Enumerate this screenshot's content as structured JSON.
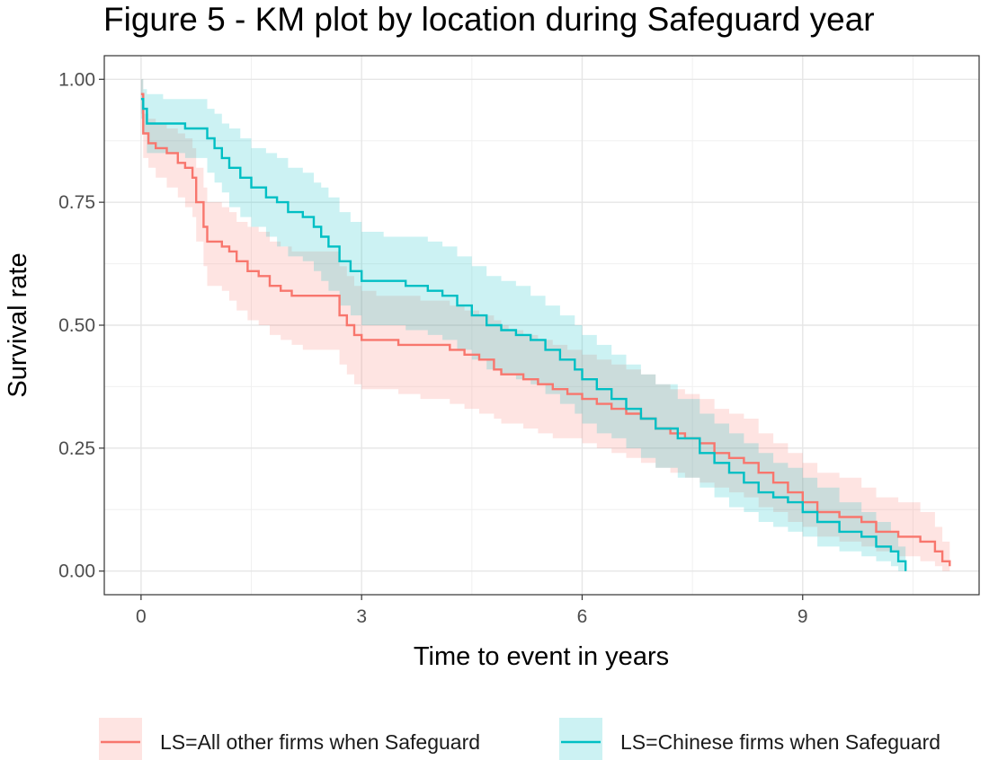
{
  "chart_data": {
    "type": "line",
    "title": "Figure 5 - KM plot by location during Safeguard year",
    "xlabel": "Time to event in years",
    "ylabel": "Survival rate",
    "xlim": [
      -0.5,
      11.4
    ],
    "ylim": [
      -0.048,
      1.048
    ],
    "x_ticks": [
      0,
      3,
      6,
      9
    ],
    "x_tick_labels": [
      "0",
      "3",
      "6",
      "9"
    ],
    "y_ticks": [
      0,
      0.25,
      0.5,
      0.75,
      1.0
    ],
    "y_tick_labels": [
      "0.00",
      "0.25",
      "0.50",
      "0.75",
      "1.00"
    ],
    "grid": true,
    "theme": "bw",
    "legend_position": "bottom",
    "series": [
      {
        "name": "LS=All other firms when Safeguard",
        "color": "#F8766D",
        "step": true,
        "x": [
          0,
          0.03,
          0.1,
          0.2,
          0.35,
          0.5,
          0.6,
          0.7,
          0.75,
          0.85,
          0.9,
          1.1,
          1.2,
          1.3,
          1.45,
          1.6,
          1.75,
          1.9,
          2.05,
          2.2,
          2.4,
          2.7,
          2.8,
          2.9,
          3.0,
          3.2,
          3.5,
          3.8,
          4.0,
          4.2,
          4.4,
          4.6,
          4.8,
          4.9,
          5.0,
          5.2,
          5.4,
          5.6,
          5.8,
          6.0,
          6.2,
          6.4,
          6.6,
          6.8,
          7.0,
          7.2,
          7.4,
          7.6,
          7.8,
          8.0,
          8.2,
          8.4,
          8.6,
          8.8,
          9.0,
          9.2,
          9.5,
          9.8,
          10.0,
          10.3,
          10.6,
          10.8,
          10.9,
          11.0
        ],
        "y": [
          0.97,
          0.89,
          0.87,
          0.86,
          0.85,
          0.83,
          0.82,
          0.8,
          0.75,
          0.7,
          0.67,
          0.66,
          0.65,
          0.63,
          0.61,
          0.6,
          0.58,
          0.57,
          0.56,
          0.56,
          0.56,
          0.52,
          0.5,
          0.48,
          0.47,
          0.47,
          0.46,
          0.46,
          0.46,
          0.45,
          0.44,
          0.43,
          0.41,
          0.4,
          0.4,
          0.39,
          0.38,
          0.37,
          0.36,
          0.35,
          0.34,
          0.33,
          0.32,
          0.31,
          0.29,
          0.28,
          0.27,
          0.26,
          0.24,
          0.23,
          0.22,
          0.2,
          0.18,
          0.16,
          0.14,
          0.12,
          0.11,
          0.1,
          0.08,
          0.07,
          0.06,
          0.04,
          0.02,
          0.01
        ],
        "ci_lower": [
          0.93,
          0.84,
          0.82,
          0.8,
          0.78,
          0.76,
          0.74,
          0.72,
          0.67,
          0.62,
          0.58,
          0.57,
          0.55,
          0.53,
          0.51,
          0.5,
          0.48,
          0.47,
          0.46,
          0.45,
          0.45,
          0.42,
          0.4,
          0.38,
          0.37,
          0.37,
          0.36,
          0.35,
          0.35,
          0.34,
          0.33,
          0.32,
          0.31,
          0.3,
          0.3,
          0.29,
          0.28,
          0.27,
          0.27,
          0.26,
          0.25,
          0.24,
          0.23,
          0.22,
          0.21,
          0.2,
          0.19,
          0.18,
          0.17,
          0.16,
          0.15,
          0.13,
          0.12,
          0.1,
          0.09,
          0.07,
          0.06,
          0.05,
          0.04,
          0.03,
          0.02,
          0.01,
          0.0,
          0.0
        ],
        "ci_upper": [
          1.0,
          0.93,
          0.92,
          0.91,
          0.9,
          0.89,
          0.88,
          0.86,
          0.82,
          0.78,
          0.75,
          0.74,
          0.73,
          0.71,
          0.7,
          0.69,
          0.67,
          0.66,
          0.65,
          0.65,
          0.65,
          0.62,
          0.6,
          0.58,
          0.57,
          0.56,
          0.56,
          0.55,
          0.55,
          0.54,
          0.53,
          0.52,
          0.51,
          0.5,
          0.49,
          0.48,
          0.47,
          0.46,
          0.45,
          0.44,
          0.43,
          0.42,
          0.41,
          0.4,
          0.38,
          0.37,
          0.36,
          0.35,
          0.33,
          0.32,
          0.31,
          0.28,
          0.26,
          0.24,
          0.22,
          0.2,
          0.19,
          0.17,
          0.15,
          0.14,
          0.12,
          0.09,
          0.06,
          0.04
        ]
      },
      {
        "name": "LS=Chinese firms when Safeguard",
        "color": "#00BFC4",
        "step": true,
        "x": [
          0,
          0.03,
          0.08,
          0.3,
          0.6,
          0.9,
          1.0,
          1.1,
          1.2,
          1.35,
          1.5,
          1.7,
          1.85,
          2.0,
          2.2,
          2.35,
          2.45,
          2.55,
          2.7,
          2.85,
          3.0,
          3.3,
          3.6,
          3.9,
          4.1,
          4.3,
          4.5,
          4.7,
          4.9,
          5.1,
          5.3,
          5.5,
          5.7,
          5.9,
          6.0,
          6.2,
          6.4,
          6.6,
          6.8,
          7.0,
          7.3,
          7.6,
          7.8,
          8.0,
          8.2,
          8.4,
          8.6,
          8.8,
          9.0,
          9.2,
          9.5,
          9.8,
          10.0,
          10.2,
          10.3,
          10.4
        ],
        "y": [
          0.96,
          0.94,
          0.91,
          0.91,
          0.9,
          0.88,
          0.86,
          0.84,
          0.82,
          0.8,
          0.78,
          0.76,
          0.75,
          0.73,
          0.72,
          0.7,
          0.68,
          0.66,
          0.63,
          0.61,
          0.59,
          0.59,
          0.58,
          0.57,
          0.56,
          0.54,
          0.52,
          0.5,
          0.49,
          0.48,
          0.47,
          0.45,
          0.43,
          0.41,
          0.39,
          0.37,
          0.35,
          0.33,
          0.31,
          0.29,
          0.27,
          0.24,
          0.22,
          0.2,
          0.18,
          0.16,
          0.15,
          0.14,
          0.12,
          0.1,
          0.08,
          0.07,
          0.05,
          0.04,
          0.02,
          0.0
        ],
        "ci_lower": [
          0.92,
          0.89,
          0.85,
          0.85,
          0.84,
          0.81,
          0.79,
          0.77,
          0.74,
          0.72,
          0.7,
          0.68,
          0.66,
          0.64,
          0.63,
          0.61,
          0.59,
          0.57,
          0.54,
          0.52,
          0.5,
          0.5,
          0.49,
          0.48,
          0.47,
          0.45,
          0.43,
          0.41,
          0.4,
          0.39,
          0.38,
          0.36,
          0.34,
          0.32,
          0.3,
          0.28,
          0.27,
          0.25,
          0.23,
          0.21,
          0.19,
          0.17,
          0.15,
          0.13,
          0.12,
          0.1,
          0.09,
          0.08,
          0.07,
          0.05,
          0.04,
          0.03,
          0.02,
          0.01,
          0.0,
          0.0
        ],
        "ci_upper": [
          1.0,
          0.98,
          0.97,
          0.96,
          0.96,
          0.94,
          0.93,
          0.91,
          0.9,
          0.88,
          0.86,
          0.85,
          0.84,
          0.82,
          0.81,
          0.79,
          0.78,
          0.76,
          0.73,
          0.71,
          0.69,
          0.68,
          0.68,
          0.67,
          0.66,
          0.64,
          0.62,
          0.6,
          0.59,
          0.58,
          0.56,
          0.54,
          0.52,
          0.5,
          0.48,
          0.46,
          0.44,
          0.42,
          0.4,
          0.38,
          0.35,
          0.32,
          0.3,
          0.28,
          0.26,
          0.24,
          0.22,
          0.21,
          0.19,
          0.17,
          0.14,
          0.12,
          0.1,
          0.08,
          0.05,
          0.02
        ]
      }
    ]
  }
}
